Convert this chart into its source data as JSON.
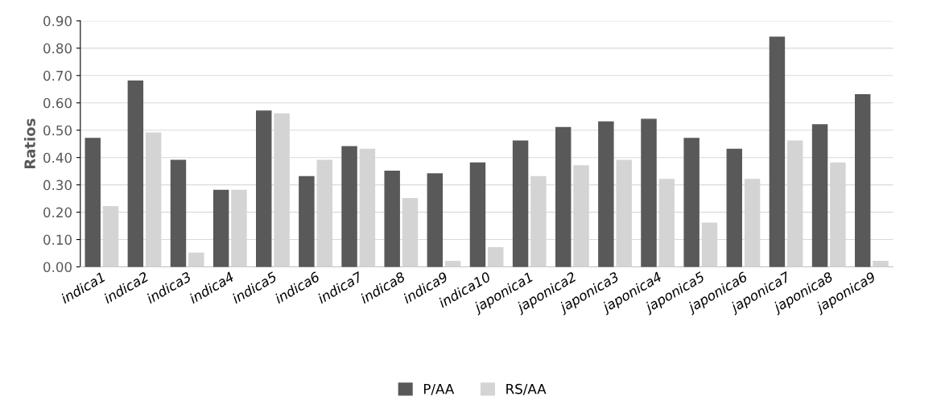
{
  "chart_data": {
    "type": "bar",
    "ylabel": "Ratios",
    "categories": [
      "indica1",
      "indica2",
      "indica3",
      "indica4",
      "indica5",
      "indica6",
      "indica7",
      "indica8",
      "indica9",
      "indica10",
      "japonica1",
      "japonica2",
      "japonica3",
      "japonica4",
      "japonica5",
      "japonica6",
      "japonica7",
      "japonica8",
      "japonica9"
    ],
    "series": [
      {
        "name": "P/AA",
        "color": "#595959",
        "values": [
          0.47,
          0.68,
          0.39,
          0.28,
          0.57,
          0.33,
          0.44,
          0.35,
          0.34,
          0.38,
          0.46,
          0.51,
          0.53,
          0.54,
          0.47,
          0.43,
          0.84,
          0.52,
          0.63
        ]
      },
      {
        "name": "RS/AA",
        "color": "#d4d4d4",
        "values": [
          0.22,
          0.49,
          0.05,
          0.28,
          0.56,
          0.39,
          0.43,
          0.25,
          0.02,
          0.07,
          0.33,
          0.37,
          0.39,
          0.32,
          0.16,
          0.32,
          0.46,
          0.38,
          0.02
        ]
      }
    ],
    "ylim": [
      0,
      0.9
    ],
    "yticks": [
      {
        "value": 0,
        "label": "0.00"
      },
      {
        "value": 0.1,
        "label": "0.10"
      },
      {
        "value": 0.2,
        "label": "0.20"
      },
      {
        "value": 0.3,
        "label": "0.30"
      },
      {
        "value": 0.4,
        "label": "0.40"
      },
      {
        "value": 0.5,
        "label": "0.50"
      },
      {
        "value": 0.6,
        "label": "0.60"
      },
      {
        "value": 0.7,
        "label": "0.70"
      },
      {
        "value": 0.8,
        "label": "0.80"
      },
      {
        "value": 0.9,
        "label": "0.90"
      }
    ],
    "grid": "y",
    "legend": "bottom"
  }
}
